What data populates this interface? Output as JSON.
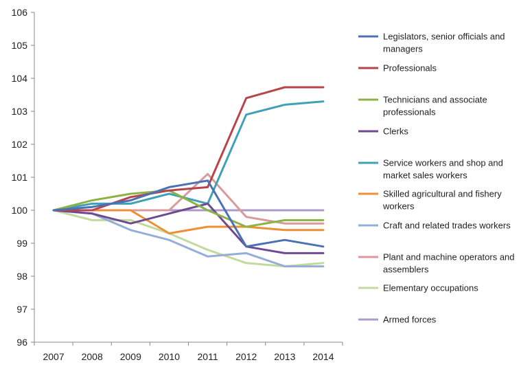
{
  "chart_data": {
    "type": "line",
    "title": "",
    "xlabel": "",
    "ylabel": "",
    "x": [
      "2007",
      "2008",
      "2009",
      "2010",
      "2011",
      "2012",
      "2013",
      "2014"
    ],
    "ylim": [
      96,
      106
    ],
    "yticks": [
      96,
      97,
      98,
      99,
      100,
      101,
      102,
      103,
      104,
      105,
      106
    ],
    "grid": false,
    "legend_position": "right",
    "series": [
      {
        "name": "Legislators, senior officials and managers",
        "color": "#4a71b5",
        "values": [
          100,
          100.1,
          100.3,
          100.7,
          100.9,
          98.9,
          99.1,
          98.9
        ]
      },
      {
        "name": "Professionals",
        "color": "#b7444a",
        "values": [
          100,
          100.0,
          100.4,
          100.6,
          100.7,
          103.4,
          103.73,
          103.73
        ]
      },
      {
        "name": "Technicians and associate professionals",
        "color": "#8db346",
        "values": [
          100,
          100.3,
          100.5,
          100.6,
          100.0,
          99.5,
          99.7,
          99.7
        ]
      },
      {
        "name": "Clerks",
        "color": "#6e4a92",
        "values": [
          100,
          99.9,
          99.6,
          99.9,
          100.2,
          98.9,
          98.7,
          98.7
        ]
      },
      {
        "name": "Service workers and shop and market sales workers",
        "color": "#3fa0b8",
        "values": [
          100,
          100.2,
          100.2,
          100.5,
          100.2,
          102.9,
          103.2,
          103.3
        ]
      },
      {
        "name": "Skilled agricultural and fishery workers",
        "color": "#ee8f35",
        "values": [
          100,
          100,
          100,
          99.3,
          99.5,
          99.5,
          99.4,
          99.4
        ]
      },
      {
        "name": "Craft and related trades workers",
        "color": "#95aed7",
        "values": [
          100,
          99.9,
          99.4,
          99.1,
          98.6,
          98.7,
          98.3,
          98.3
        ]
      },
      {
        "name": "Plant and machine operators and assemblers",
        "color": "#d99a9b",
        "values": [
          100,
          100,
          100,
          100,
          101.1,
          99.8,
          99.6,
          99.6
        ]
      },
      {
        "name": "Elementary occupations",
        "color": "#c3d99d",
        "values": [
          100,
          99.7,
          99.7,
          99.3,
          98.8,
          98.4,
          98.3,
          98.4
        ]
      },
      {
        "name": "Armed forces",
        "color": "#ac9ac7",
        "values": [
          100,
          100,
          100,
          100,
          100,
          100,
          100,
          100
        ]
      }
    ]
  }
}
